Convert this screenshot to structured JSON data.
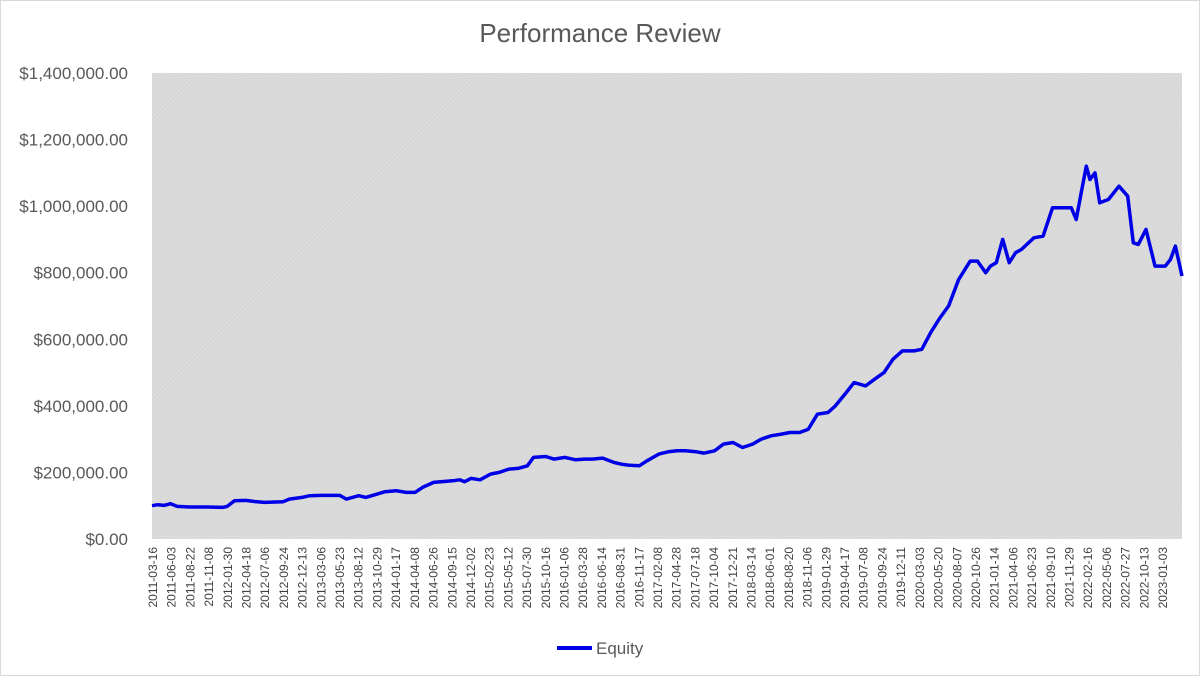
{
  "chart_data": {
    "type": "line",
    "title": "Performance Review",
    "xlabel": "",
    "ylabel": "",
    "x_range": [
      "2011-03-16",
      "2023-03-15"
    ],
    "ylim": [
      0,
      1400000
    ],
    "grid": false,
    "legend_position": "bottom",
    "plot_background": "hatched-gray",
    "ytick_values": [
      0,
      200000,
      400000,
      600000,
      800000,
      1000000,
      1200000,
      1400000
    ],
    "ytick_labels": [
      "$0.00",
      "$200,000.00",
      "$400,000.00",
      "$600,000.00",
      "$800,000.00",
      "$1,000,000.00",
      "$1,200,000.00",
      "$1,400,000.00"
    ],
    "xtick_labels": [
      "2011-03-16",
      "2011-06-03",
      "2011-08-22",
      "2011-11-08",
      "2012-01-30",
      "2012-04-18",
      "2012-07-06",
      "2012-09-24",
      "2012-12-13",
      "2013-03-06",
      "2013-05-23",
      "2013-08-12",
      "2013-10-29",
      "2014-01-17",
      "2014-04-08",
      "2014-06-26",
      "2014-09-15",
      "2014-12-02",
      "2015-02-23",
      "2015-05-12",
      "2015-07-30",
      "2015-10-16",
      "2016-01-06",
      "2016-03-28",
      "2016-06-14",
      "2016-08-31",
      "2016-11-17",
      "2017-02-08",
      "2017-04-28",
      "2017-07-18",
      "2017-10-04",
      "2017-12-21",
      "2018-03-14",
      "2018-06-01",
      "2018-08-20",
      "2018-11-06",
      "2019-01-29",
      "2019-04-17",
      "2019-07-08",
      "2019-09-24",
      "2019-12-11",
      "2020-03-03",
      "2020-05-20",
      "2020-08-07",
      "2020-10-26",
      "2021-01-14",
      "2021-04-06",
      "2021-06-23",
      "2021-09-10",
      "2021-11-29",
      "2022-02-16",
      "2022-05-06",
      "2022-07-27",
      "2022-10-13",
      "2023-01-03"
    ],
    "series": [
      {
        "name": "Equity",
        "color": "#0000e6",
        "x": [
          "2011-03-16",
          "2011-04-10",
          "2011-05-05",
          "2011-06-03",
          "2011-07-01",
          "2011-08-22",
          "2011-11-08",
          "2012-01-10",
          "2012-01-30",
          "2012-03-01",
          "2012-04-18",
          "2012-05-20",
          "2012-07-06",
          "2012-09-24",
          "2012-10-20",
          "2012-12-13",
          "2013-01-15",
          "2013-03-06",
          "2013-05-23",
          "2013-06-20",
          "2013-08-12",
          "2013-09-10",
          "2013-10-29",
          "2013-12-01",
          "2014-01-17",
          "2014-03-01",
          "2014-04-08",
          "2014-05-10",
          "2014-06-26",
          "2014-09-15",
          "2014-10-15",
          "2014-11-05",
          "2014-12-02",
          "2015-01-10",
          "2015-02-23",
          "2015-04-01",
          "2015-05-12",
          "2015-06-20",
          "2015-07-30",
          "2015-08-25",
          "2015-10-16",
          "2015-11-20",
          "2016-01-06",
          "2016-02-20",
          "2016-03-28",
          "2016-05-01",
          "2016-06-14",
          "2016-08-01",
          "2016-08-31",
          "2016-10-01",
          "2016-11-17",
          "2016-12-20",
          "2017-02-08",
          "2017-03-20",
          "2017-04-28",
          "2017-06-01",
          "2017-07-18",
          "2017-08-20",
          "2017-10-04",
          "2017-11-10",
          "2017-12-21",
          "2018-01-30",
          "2018-03-14",
          "2018-04-20",
          "2018-06-01",
          "2018-07-15",
          "2018-08-20",
          "2018-09-30",
          "2018-11-06",
          "2018-12-15",
          "2019-01-29",
          "2019-03-01",
          "2019-04-17",
          "2019-05-20",
          "2019-07-08",
          "2019-08-15",
          "2019-09-24",
          "2019-11-01",
          "2019-12-11",
          "2020-01-30",
          "2020-03-03",
          "2020-04-10",
          "2020-05-20",
          "2020-06-25",
          "2020-08-07",
          "2020-09-25",
          "2020-10-26",
          "2020-11-30",
          "2020-12-20",
          "2021-01-14",
          "2021-02-10",
          "2021-03-10",
          "2021-04-06",
          "2021-05-01",
          "2021-06-23",
          "2021-08-01",
          "2021-09-10",
          "2021-10-20",
          "2021-11-29",
          "2021-12-20",
          "2022-01-10",
          "2022-02-01",
          "2022-02-16",
          "2022-03-10",
          "2022-03-30",
          "2022-05-06",
          "2022-06-20",
          "2022-07-27",
          "2022-08-20",
          "2022-09-10",
          "2022-10-13",
          "2022-11-20",
          "2022-12-15",
          "2023-01-03",
          "2023-01-25",
          "2023-02-15",
          "2023-03-15"
        ],
        "values": [
          100000,
          103000,
          101000,
          106000,
          98000,
          96000,
          96000,
          95000,
          98000,
          115000,
          116000,
          113000,
          110000,
          112000,
          120000,
          125000,
          130000,
          131000,
          131000,
          120000,
          130000,
          125000,
          135000,
          142000,
          145000,
          140000,
          140000,
          155000,
          170000,
          175000,
          178000,
          172000,
          182000,
          178000,
          195000,
          200000,
          210000,
          212000,
          220000,
          245000,
          248000,
          240000,
          245000,
          238000,
          240000,
          240000,
          243000,
          230000,
          225000,
          222000,
          220000,
          235000,
          255000,
          262000,
          265000,
          265000,
          262000,
          258000,
          265000,
          285000,
          290000,
          275000,
          285000,
          300000,
          310000,
          315000,
          320000,
          320000,
          330000,
          375000,
          380000,
          400000,
          440000,
          470000,
          460000,
          480000,
          500000,
          540000,
          565000,
          565000,
          570000,
          620000,
          665000,
          700000,
          780000,
          835000,
          835000,
          800000,
          820000,
          830000,
          900000,
          830000,
          860000,
          870000,
          905000,
          910000,
          995000,
          995000,
          995000,
          960000,
          1040000,
          1120000,
          1080000,
          1100000,
          1010000,
          1020000,
          1060000,
          1030000,
          890000,
          885000,
          930000,
          820000,
          820000,
          820000,
          840000,
          880000,
          790000
        ]
      }
    ]
  }
}
